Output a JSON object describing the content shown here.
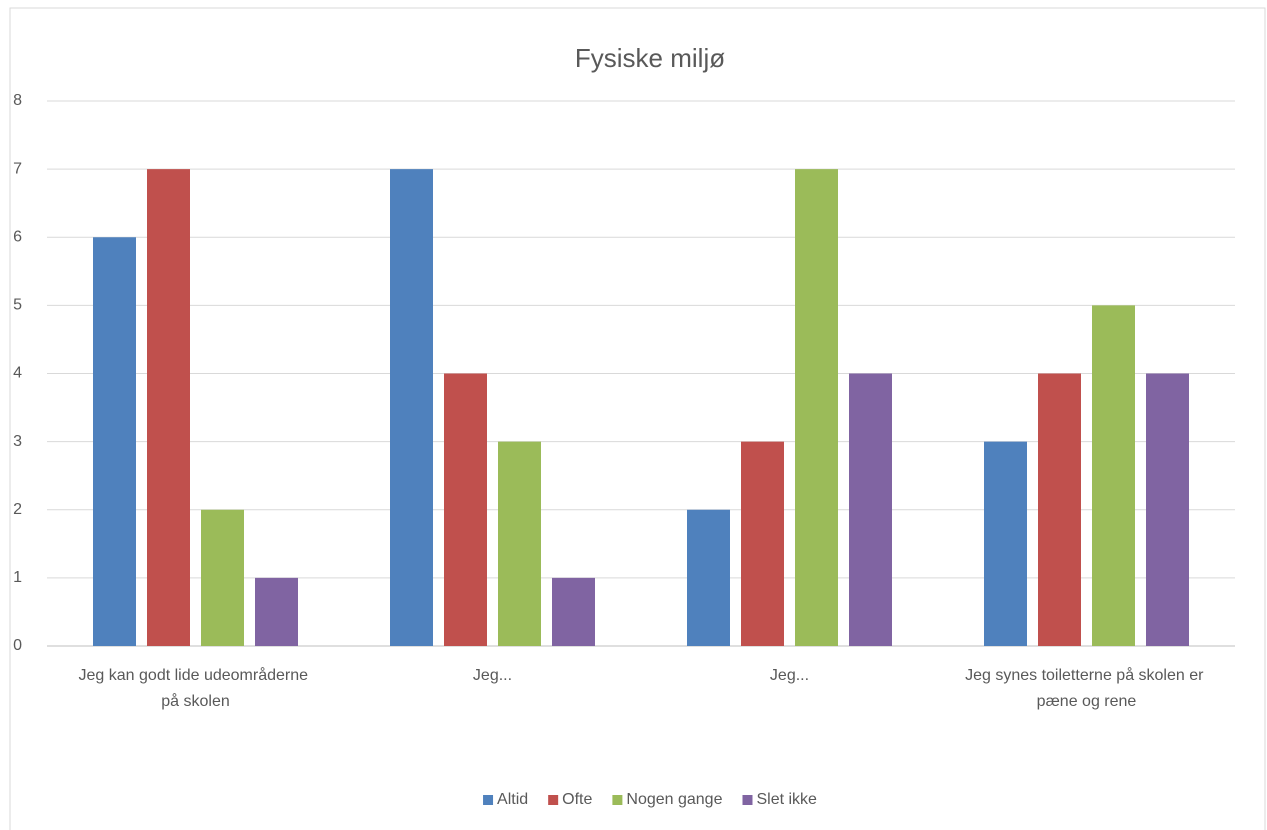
{
  "chart_data": {
    "type": "bar",
    "title": "Fysiske miljø",
    "categories": [
      "Jeg kan godt lide udeområderne på skolen",
      "Jeg...",
      "Jeg...",
      "Jeg synes toiletterne på skolen er pæne og rene"
    ],
    "series": [
      {
        "name": "Altid",
        "color": "#4f81bd",
        "values": [
          6,
          7,
          2,
          3
        ]
      },
      {
        "name": "Ofte",
        "color": "#c0504d",
        "values": [
          7,
          4,
          3,
          4
        ]
      },
      {
        "name": "Nogen gange",
        "color": "#9bbb59",
        "values": [
          2,
          3,
          7,
          5
        ]
      },
      {
        "name": "Slet ikke",
        "color": "#8064a2",
        "values": [
          1,
          1,
          4,
          4
        ]
      }
    ],
    "ylim": [
      0,
      8
    ],
    "yticks": [
      0,
      1,
      2,
      3,
      4,
      5,
      6,
      7,
      8
    ],
    "grid": true,
    "legend": "bottom"
  }
}
